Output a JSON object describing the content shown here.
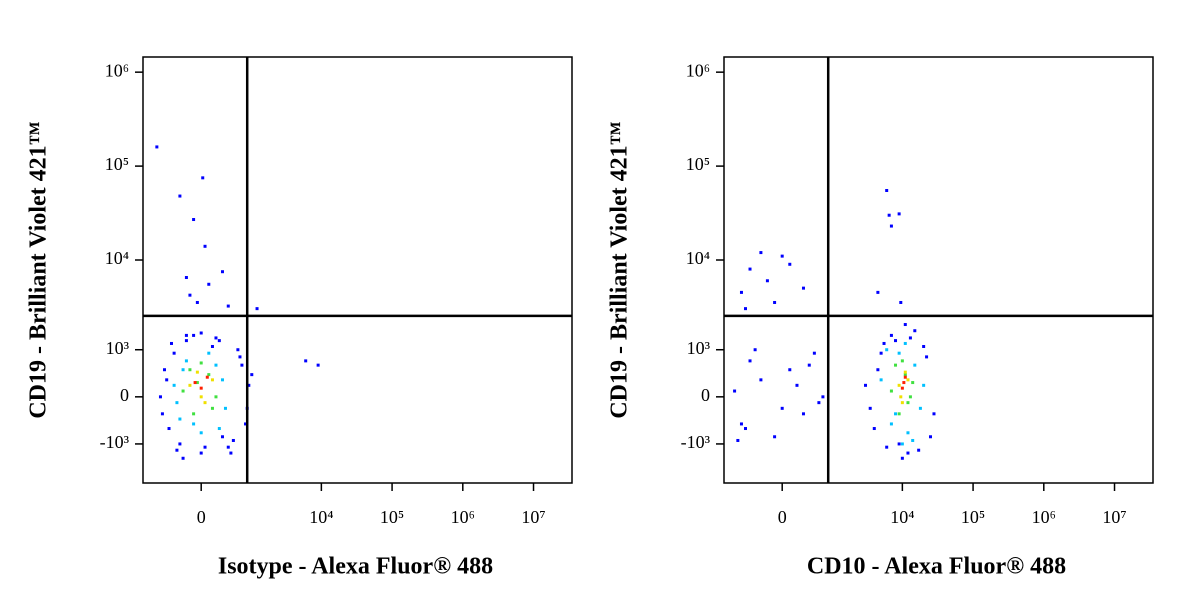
{
  "chart_data": [
    {
      "type": "scatter",
      "xlabel": "Isotype - Alexa Fluor® 488",
      "ylabel": "CD19 - Brilliant Violet 421™",
      "xscale": "biexponential",
      "yscale": "biexponential",
      "xlim": [
        -1300,
        35000000
      ],
      "ylim": [
        -2850,
        1450000
      ],
      "xticks": [
        0,
        {
          "value": 10000,
          "label": "10⁴"
        },
        {
          "value": 100000,
          "label": "10⁵"
        },
        {
          "value": 1000000,
          "label": "10⁶"
        },
        {
          "value": 10000000,
          "label": "10⁷"
        }
      ],
      "yticks": [
        {
          "value": -1000,
          "label": "-10³"
        },
        0,
        {
          "value": 1000,
          "label": "10³"
        },
        {
          "value": 10000,
          "label": "10⁴"
        },
        {
          "value": 100000,
          "label": "10⁵"
        },
        {
          "value": 1000000,
          "label": "10⁶"
        }
      ],
      "gates": {
        "x": 850,
        "y": 2500
      },
      "series": [
        {
          "color": "#0000ff",
          "x": [
            -800,
            -300,
            20,
            -100,
            50,
            -200,
            100,
            -150,
            300,
            400,
            -50,
            1200,
            6000,
            9000,
            1000,
            -700,
            -600,
            -500,
            -400,
            -300,
            -200,
            0,
            200,
            400,
            600,
            800,
            900,
            -650,
            -550,
            700,
            850,
            -450,
            300,
            -100,
            500,
            -350,
            150,
            650,
            -250,
            50,
            0,
            -200,
            250,
            450
          ],
          "y": [
            160000,
            48000,
            75000,
            27000,
            14000,
            6500,
            5500,
            4200,
            7500,
            3200,
            3500,
            3000,
            700,
            600,
            400,
            0,
            500,
            -600,
            900,
            -1000,
            1300,
            -1300,
            1400,
            -1100,
            1000,
            -500,
            200,
            -300,
            300,
            600,
            -200,
            1200,
            -800,
            1500,
            -900,
            -1200,
            1100,
            800,
            -1500,
            -1100,
            1600,
            1500,
            1300,
            -1300
          ]
        },
        {
          "color": "#00c0ff",
          "x": [
            -400,
            -300,
            -200,
            0,
            200,
            350,
            -350,
            100,
            -100,
            300,
            -250,
            250
          ],
          "y": [
            200,
            -400,
            700,
            -700,
            600,
            -200,
            -100,
            900,
            -500,
            300,
            500,
            -600
          ]
        },
        {
          "color": "#40e040",
          "x": [
            -250,
            -100,
            100,
            200,
            -150,
            150,
            0,
            -50
          ],
          "y": [
            100,
            -300,
            400,
            0,
            500,
            -200,
            650,
            250
          ]
        },
        {
          "color": "#f0e000",
          "x": [
            -150,
            50,
            150,
            -50,
            0
          ],
          "y": [
            200,
            -100,
            300,
            450,
            0
          ]
        },
        {
          "color": "#ff2000",
          "x": [
            0,
            -80,
            80
          ],
          "y": [
            150,
            250,
            350
          ]
        }
      ]
    },
    {
      "type": "scatter",
      "xlabel": "CD10 - Alexa Fluor® 488",
      "ylabel": "CD19 - Brilliant Violet 421™",
      "xscale": "biexponential",
      "yscale": "biexponential",
      "xlim": [
        -1300,
        35000000
      ],
      "ylim": [
        -2850,
        1450000
      ],
      "xticks": [
        0,
        {
          "value": 10000,
          "label": "10⁴"
        },
        {
          "value": 100000,
          "label": "10⁵"
        },
        {
          "value": 1000000,
          "label": "10⁶"
        },
        {
          "value": 10000000,
          "label": "10⁷"
        }
      ],
      "yticks": [
        {
          "value": -1000,
          "label": "-10³"
        },
        0,
        {
          "value": 1000,
          "label": "10³"
        },
        {
          "value": 10000,
          "label": "10⁴"
        },
        {
          "value": 100000,
          "label": "10⁵"
        },
        {
          "value": 1000000,
          "label": "10⁶"
        }
      ],
      "gates": {
        "x": 850,
        "y": 2500
      },
      "series": [
        {
          "color": "#0000ff",
          "x": [
            -900,
            -700,
            -500,
            -300,
            -100,
            100,
            300,
            500,
            700,
            -800,
            -400,
            0,
            400,
            -600,
            200,
            600,
            -700,
            -500,
            -300,
            -100,
            100,
            300,
            -600,
            0,
            6000,
            6500,
            7000,
            9000,
            9500,
            4500,
            -200,
            3000,
            4000,
            5000,
            6000,
            8000,
            10000,
            13000,
            17000,
            22000,
            28000,
            4500,
            7000,
            12000,
            20000,
            25000,
            9000,
            15000,
            3500,
            5500,
            11000
          ],
          "y": [
            100,
            -500,
            700,
            300,
            -800,
            500,
            -300,
            900,
            0,
            -900,
            1000,
            -200,
            600,
            -600,
            200,
            -100,
            4500,
            8000,
            12000,
            3500,
            9000,
            5000,
            3000,
            11000,
            55000,
            30000,
            23000,
            31000,
            3500,
            4500,
            6000,
            200,
            -600,
            900,
            -1100,
            1300,
            -1500,
            1400,
            -1200,
            800,
            -300,
            500,
            1500,
            -1300,
            1100,
            -800,
            -1000,
            1700,
            -200,
            1200,
            2000
          ]
        },
        {
          "color": "#00c0ff",
          "x": [
            5000,
            7000,
            9000,
            12000,
            15000,
            18000,
            6000,
            11000,
            14000,
            8000,
            20000,
            10000
          ],
          "y": [
            300,
            -500,
            900,
            -700,
            600,
            -200,
            1000,
            1200,
            -900,
            -300,
            200,
            -1000
          ]
        },
        {
          "color": "#40e040",
          "x": [
            7000,
            9000,
            11000,
            13000,
            8000,
            12000,
            10000,
            14000
          ],
          "y": [
            100,
            -300,
            400,
            0,
            600,
            -100,
            700,
            250
          ]
        },
        {
          "color": "#f0e000",
          "x": [
            9000,
            10000,
            12000,
            11000,
            9500
          ],
          "y": [
            200,
            -100,
            300,
            450,
            0
          ]
        },
        {
          "color": "#ff2000",
          "x": [
            10000,
            11000,
            10500
          ],
          "y": [
            150,
            350,
            250
          ]
        }
      ]
    }
  ]
}
